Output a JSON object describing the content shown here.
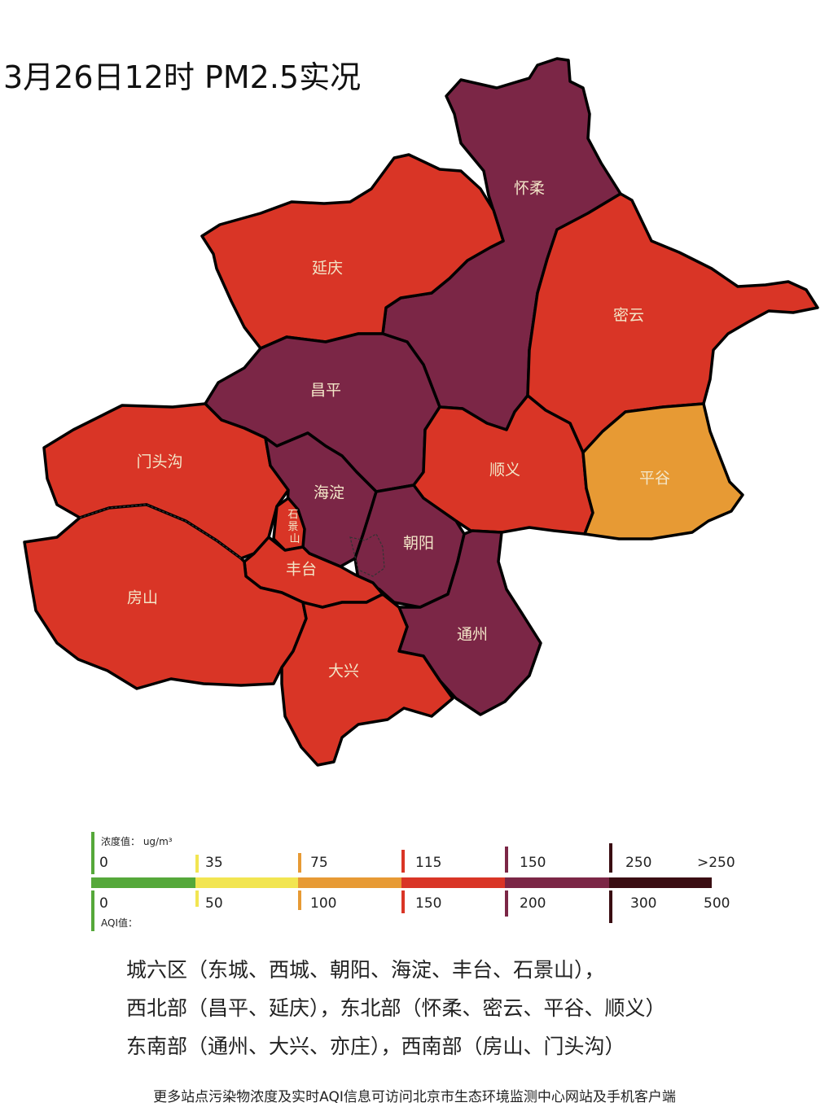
{
  "title": "3月26日12时 PM2.5实况",
  "colors": {
    "good": "#55a83a",
    "moderate": "#f2e551",
    "light": "#e79a34",
    "medium": "#d93526",
    "heavy": "#7b2646",
    "severe": "#3a0d12"
  },
  "regions": [
    {
      "name": "怀柔",
      "level": "heavy"
    },
    {
      "name": "延庆",
      "level": "medium"
    },
    {
      "name": "密云",
      "level": "medium"
    },
    {
      "name": "昌平",
      "level": "heavy"
    },
    {
      "name": "门头沟",
      "level": "medium"
    },
    {
      "name": "顺义",
      "level": "medium"
    },
    {
      "name": "平谷",
      "level": "light"
    },
    {
      "name": "海淀",
      "level": "heavy"
    },
    {
      "name": "石景山",
      "level": "medium"
    },
    {
      "name": "朝阳",
      "level": "heavy"
    },
    {
      "name": "丰台",
      "level": "medium"
    },
    {
      "name": "房山",
      "level": "medium"
    },
    {
      "name": "通州",
      "level": "heavy"
    },
    {
      "name": "大兴",
      "level": "medium"
    }
  ],
  "legend": {
    "concentration_label": "浓度值： ug/m³",
    "aqi_label": "AQI值：",
    "concentration_ticks": [
      "0",
      "35",
      "75",
      "115",
      "150",
      "250",
      ">250"
    ],
    "aqi_ticks": [
      "0",
      "50",
      "100",
      "150",
      "200",
      "300",
      "500"
    ]
  },
  "notes": [
    "城六区（东城、西城、朝阳、海淀、丰台、石景山），",
    "西北部（昌平、延庆），东北部（怀柔、密云、平谷、顺义）",
    "东南部（通州、大兴、亦庄），西南部（房山、门头沟）"
  ],
  "footer": "更多站点污染物浓度及实时AQI信息可访问北京市生态环境监测中心网站及手机客户端"
}
